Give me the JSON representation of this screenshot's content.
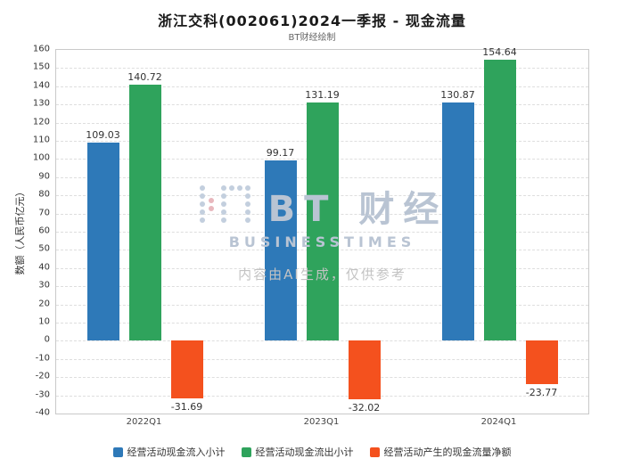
{
  "header": {
    "title": "浙江交科(002061)2024一季报 - 现金流量",
    "subtitle": "BT财经绘制"
  },
  "watermark": {
    "brand": "BT 财经",
    "brand_sub": "BUSINESSTIMES",
    "disclaimer": "内容由AI生成，仅供参考"
  },
  "chart_data": {
    "type": "bar",
    "title": "浙江交科(002061)2024一季报 - 现金流量",
    "subtitle": "BT财经绘制",
    "categories": [
      "2022Q1",
      "2023Q1",
      "2024Q1"
    ],
    "series": [
      {
        "name": "经营活动现金流入小计",
        "color": "#2E79B8",
        "values": [
          109.03,
          99.17,
          130.87
        ]
      },
      {
        "name": "经营活动现金流出小计",
        "color": "#2FA35C",
        "values": [
          140.72,
          131.19,
          154.64
        ]
      },
      {
        "name": "经营活动产生的现金流量净额",
        "color": "#F4511E",
        "values": [
          -31.69,
          -32.02,
          -23.77
        ]
      }
    ],
    "xlabel": "",
    "ylabel": "数额（人民币亿元）",
    "ylim": [
      -40,
      160
    ],
    "ytick_step": 10,
    "grid": true,
    "legend_position": "bottom"
  }
}
